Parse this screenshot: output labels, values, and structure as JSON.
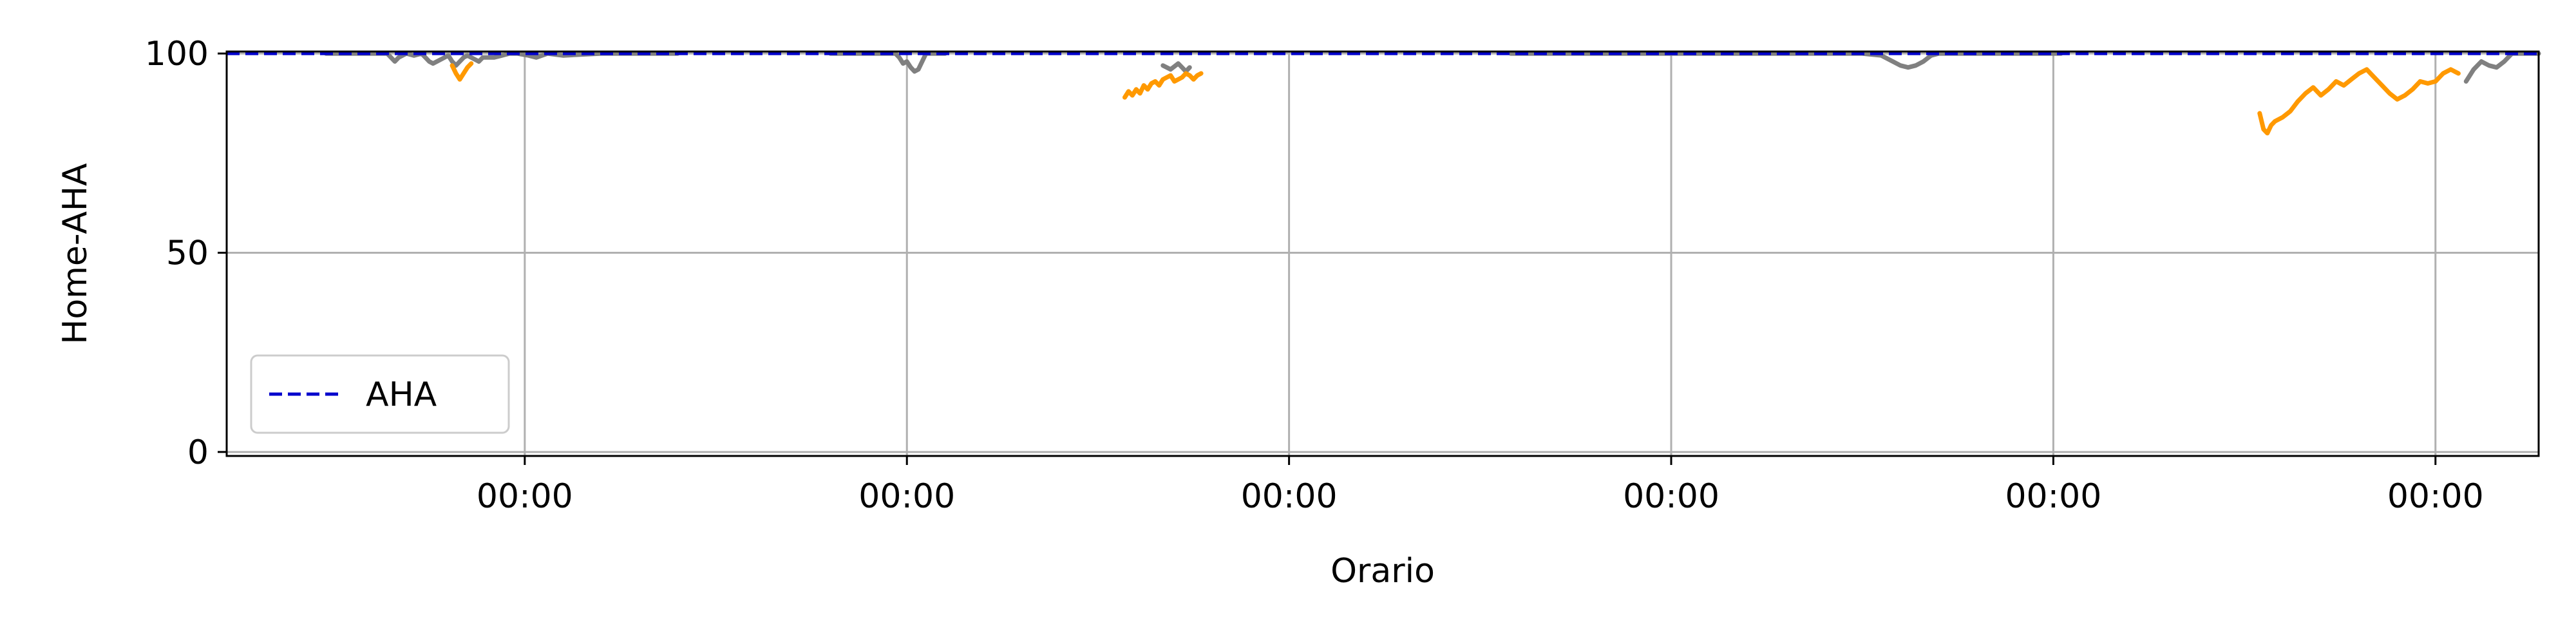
{
  "chart_data": {
    "type": "line",
    "title": "",
    "xlabel": "Orario",
    "ylabel": "Home-AHA",
    "xlim": [
      -0.78,
      5.27
    ],
    "ylim": [
      -1,
      100.5
    ],
    "x_ticks": [
      {
        "value": 0,
        "label": "00:00"
      },
      {
        "value": 1,
        "label": "00:00"
      },
      {
        "value": 2,
        "label": "00:00"
      },
      {
        "value": 3,
        "label": "00:00"
      },
      {
        "value": 4,
        "label": "00:00"
      },
      {
        "value": 5,
        "label": "00:00"
      }
    ],
    "y_ticks": [
      {
        "value": 0,
        "label": "0"
      },
      {
        "value": 50,
        "label": "50"
      },
      {
        "value": 100,
        "label": "100"
      }
    ],
    "grid": true,
    "legend_position": "lower-left",
    "series": [
      {
        "name": "AHA",
        "style": "dashed",
        "color": "#0000cc",
        "in_legend": true,
        "segments": [
          [
            [
              -0.78,
              100
            ],
            [
              5.27,
              100
            ]
          ]
        ]
      },
      {
        "name": "",
        "style": "solid",
        "color": "#808080",
        "in_legend": false,
        "segments": [
          [
            [
              -0.52,
              100
            ],
            [
              -0.36,
              100
            ],
            [
              -0.35,
              99
            ],
            [
              -0.34,
              98
            ],
            [
              -0.33,
              99
            ],
            [
              -0.31,
              100
            ],
            [
              -0.29,
              99.5
            ],
            [
              -0.27,
              100
            ],
            [
              -0.26,
              99
            ],
            [
              -0.25,
              98
            ],
            [
              -0.24,
              97.5
            ],
            [
              -0.23,
              98
            ],
            [
              -0.21,
              99
            ],
            [
              -0.2,
              99.5
            ],
            [
              -0.19,
              98
            ],
            [
              -0.18,
              97
            ],
            [
              -0.17,
              98
            ],
            [
              -0.16,
              99
            ],
            [
              -0.15,
              99.5
            ],
            [
              -0.12,
              98
            ],
            [
              -0.11,
              99
            ],
            [
              -0.08,
              99
            ],
            [
              -0.06,
              99.5
            ],
            [
              -0.04,
              100
            ],
            [
              -0.02,
              100
            ],
            [
              0.01,
              99.5
            ],
            [
              0.03,
              99
            ],
            [
              0.06,
              100
            ],
            [
              0.1,
              99.5
            ],
            [
              0.2,
              100
            ],
            [
              0.4,
              100
            ]
          ],
          [
            [
              0.8,
              100
            ],
            [
              0.97,
              100
            ],
            [
              0.98,
              99
            ],
            [
              0.99,
              97.5
            ],
            [
              1.0,
              98
            ],
            [
              1.01,
              96.5
            ],
            [
              1.02,
              95.5
            ],
            [
              1.03,
              96
            ],
            [
              1.05,
              100
            ],
            [
              1.1,
              100
            ]
          ],
          [
            [
              1.67,
              97
            ],
            [
              1.69,
              96
            ],
            [
              1.71,
              97.5
            ],
            [
              1.72,
              96.5
            ],
            [
              1.73,
              95.5
            ],
            [
              1.74,
              96.5
            ]
          ],
          [
            [
              2.58,
              100
            ],
            [
              3.5,
              100
            ],
            [
              3.55,
              99.5
            ],
            [
              3.58,
              98
            ],
            [
              3.6,
              97
            ],
            [
              3.62,
              96.5
            ],
            [
              3.64,
              97
            ],
            [
              3.66,
              98
            ],
            [
              3.68,
              99.5
            ],
            [
              3.7,
              100
            ],
            [
              4.02,
              100
            ]
          ],
          [
            [
              5.08,
              93
            ],
            [
              5.1,
              96
            ],
            [
              5.12,
              98
            ],
            [
              5.14,
              97
            ],
            [
              5.16,
              96.5
            ],
            [
              5.18,
              98
            ],
            [
              5.2,
              100
            ]
          ],
          [
            [
              5.2,
              100
            ],
            [
              5.27,
              100
            ]
          ]
        ]
      },
      {
        "name": "",
        "style": "solid",
        "color": "#ff9900",
        "in_legend": false,
        "segments": [
          [
            [
              -0.19,
              97
            ],
            [
              -0.18,
              95
            ],
            [
              -0.17,
              93.5
            ],
            [
              -0.16,
              95
            ],
            [
              -0.15,
              96.5
            ],
            [
              -0.14,
              97.5
            ]
          ],
          [
            [
              1.57,
              89
            ],
            [
              1.58,
              90.5
            ],
            [
              1.59,
              89.5
            ],
            [
              1.6,
              91
            ],
            [
              1.61,
              90
            ],
            [
              1.62,
              92
            ],
            [
              1.63,
              91
            ],
            [
              1.64,
              92.5
            ],
            [
              1.65,
              93
            ],
            [
              1.66,
              92
            ],
            [
              1.67,
              93.5
            ],
            [
              1.68,
              94
            ],
            [
              1.69,
              94.5
            ],
            [
              1.7,
              93
            ],
            [
              1.71,
              93.5
            ],
            [
              1.72,
              94
            ],
            [
              1.73,
              95
            ],
            [
              1.74,
              94.5
            ],
            [
              1.75,
              93.5
            ],
            [
              1.76,
              94.5
            ],
            [
              1.77,
              95
            ]
          ],
          [
            [
              4.54,
              85
            ],
            [
              4.55,
              81
            ],
            [
              4.56,
              80
            ],
            [
              4.57,
              82
            ],
            [
              4.58,
              83
            ],
            [
              4.6,
              84
            ],
            [
              4.62,
              85.5
            ],
            [
              4.64,
              88
            ],
            [
              4.66,
              90
            ],
            [
              4.68,
              91.5
            ],
            [
              4.7,
              89.5
            ],
            [
              4.72,
              91
            ],
            [
              4.74,
              93
            ],
            [
              4.76,
              92
            ],
            [
              4.78,
              93.5
            ],
            [
              4.8,
              95
            ],
            [
              4.82,
              96
            ],
            [
              4.84,
              94
            ],
            [
              4.86,
              92
            ],
            [
              4.88,
              90
            ],
            [
              4.9,
              88.5
            ],
            [
              4.92,
              89.5
            ],
            [
              4.94,
              91
            ],
            [
              4.96,
              93
            ],
            [
              4.98,
              92.5
            ],
            [
              5.0,
              93
            ],
            [
              5.02,
              95
            ],
            [
              5.04,
              96
            ],
            [
              5.06,
              95
            ]
          ]
        ]
      }
    ],
    "legend": [
      {
        "label": "AHA",
        "color": "#0000cc",
        "style": "dashed"
      }
    ]
  }
}
